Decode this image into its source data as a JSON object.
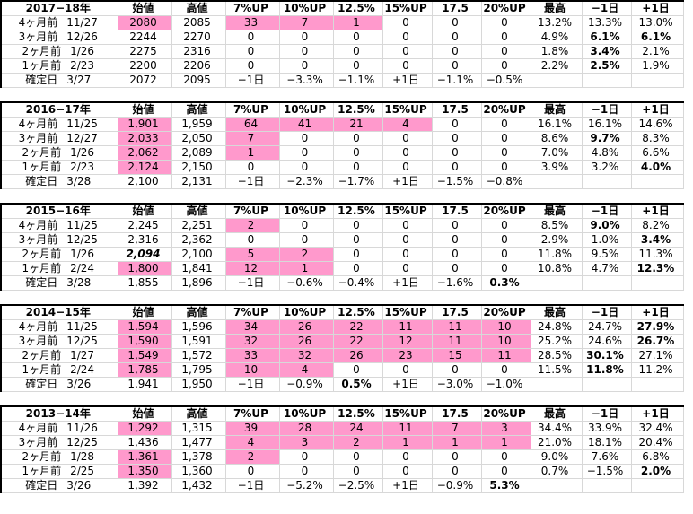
{
  "headers": [
    "始値",
    "高値",
    "7%UP",
    "10%UP",
    "12.5%",
    "15%UP",
    "17.5",
    "20%UP",
    "最高",
    "−1日",
    "+1日"
  ],
  "blocks": [
    {
      "year": "2017−18年",
      "rows": [
        {
          "label": "4ヶ月前",
          "date": "11/27",
          "cells": [
            "2080",
            "2085",
            "33",
            "7",
            "1",
            "0",
            "0",
            "0",
            "13.2%",
            "13.3%",
            "13.0%"
          ]
        },
        {
          "label": "3ヶ月前",
          "date": "12/26",
          "cells": [
            "2244",
            "2270",
            "0",
            "0",
            "0",
            "0",
            "0",
            "0",
            "4.9%",
            "6.1%",
            "6.1%"
          ]
        },
        {
          "label": "2ヶ月前",
          "date": "1/26",
          "cells": [
            "2275",
            "2316",
            "0",
            "0",
            "0",
            "0",
            "0",
            "0",
            "1.8%",
            "3.4%",
            "2.1%"
          ]
        },
        {
          "label": "1ヶ月前",
          "date": "2/23",
          "cells": [
            "2200",
            "2206",
            "0",
            "0",
            "0",
            "0",
            "0",
            "0",
            "2.2%",
            "2.5%",
            "1.9%"
          ]
        },
        {
          "label": "確定日",
          "date": "3/27",
          "cells": [
            "2072",
            "2095",
            "−1日",
            "−3.3%",
            "−1.1%",
            "+1日",
            "−1.1%",
            "−0.5%",
            "",
            "",
            ""
          ]
        }
      ]
    },
    {
      "year": "2016−17年",
      "rows": [
        {
          "label": "4ヶ月前",
          "date": "11/25",
          "cells": [
            "1,901",
            "1,959",
            "64",
            "41",
            "21",
            "4",
            "0",
            "0",
            "16.1%",
            "16.1%",
            "14.6%"
          ]
        },
        {
          "label": "3ヶ月前",
          "date": "12/27",
          "cells": [
            "2,033",
            "2,050",
            "7",
            "0",
            "0",
            "0",
            "0",
            "0",
            "8.6%",
            "9.7%",
            "8.3%"
          ]
        },
        {
          "label": "2ヶ月前",
          "date": "1/26",
          "cells": [
            "2,062",
            "2,089",
            "1",
            "0",
            "0",
            "0",
            "0",
            "0",
            "7.0%",
            "4.8%",
            "6.6%"
          ]
        },
        {
          "label": "1ヶ月前",
          "date": "2/23",
          "cells": [
            "2,124",
            "2,150",
            "0",
            "0",
            "0",
            "0",
            "0",
            "0",
            "3.9%",
            "3.2%",
            "4.0%"
          ]
        },
        {
          "label": "確定日",
          "date": "3/28",
          "cells": [
            "2,100",
            "2,131",
            "−1日",
            "−2.3%",
            "−1.7%",
            "+1日",
            "−1.5%",
            "−0.8%",
            "",
            "",
            ""
          ]
        }
      ]
    },
    {
      "year": "2015−16年",
      "rows": [
        {
          "label": "4ヶ月前",
          "date": "11/25",
          "cells": [
            "2,245",
            "2,251",
            "2",
            "0",
            "0",
            "0",
            "0",
            "0",
            "8.5%",
            "9.0%",
            "8.2%"
          ]
        },
        {
          "label": "3ヶ月前",
          "date": "12/25",
          "cells": [
            "2,316",
            "2,362",
            "0",
            "0",
            "0",
            "0",
            "0",
            "0",
            "2.9%",
            "1.0%",
            "3.4%"
          ]
        },
        {
          "label": "2ヶ月前",
          "date": "1/26",
          "cells": [
            "2,094",
            "2,100",
            "5",
            "2",
            "0",
            "0",
            "0",
            "0",
            "11.8%",
            "9.5%",
            "11.3%"
          ]
        },
        {
          "label": "1ヶ月前",
          "date": "2/24",
          "cells": [
            "1,800",
            "1,841",
            "12",
            "1",
            "0",
            "0",
            "0",
            "0",
            "10.8%",
            "4.7%",
            "12.3%"
          ]
        },
        {
          "label": "確定日",
          "date": "3/28",
          "cells": [
            "1,855",
            "1,896",
            "−1日",
            "−0.6%",
            "−0.4%",
            "+1日",
            "−1.6%",
            "0.3%",
            "",
            "",
            ""
          ]
        }
      ]
    },
    {
      "year": "2014−15年",
      "rows": [
        {
          "label": "4ヶ月前",
          "date": "11/25",
          "cells": [
            "1,594",
            "1,596",
            "34",
            "26",
            "22",
            "11",
            "11",
            "10",
            "24.8%",
            "24.7%",
            "27.9%"
          ]
        },
        {
          "label": "3ヶ月前",
          "date": "12/25",
          "cells": [
            "1,590",
            "1,591",
            "32",
            "26",
            "22",
            "12",
            "11",
            "10",
            "25.2%",
            "24.6%",
            "26.7%"
          ]
        },
        {
          "label": "2ヶ月前",
          "date": "1/27",
          "cells": [
            "1,549",
            "1,572",
            "33",
            "32",
            "26",
            "23",
            "15",
            "11",
            "28.5%",
            "30.1%",
            "27.1%"
          ]
        },
        {
          "label": "1ヶ月前",
          "date": "2/24",
          "cells": [
            "1,785",
            "1,795",
            "10",
            "4",
            "0",
            "0",
            "0",
            "0",
            "11.5%",
            "11.8%",
            "11.2%"
          ]
        },
        {
          "label": "確定日",
          "date": "3/26",
          "cells": [
            "1,941",
            "1,950",
            "−1日",
            "−0.9%",
            "0.5%",
            "+1日",
            "−3.0%",
            "−1.0%",
            "",
            "",
            ""
          ]
        }
      ]
    },
    {
      "year": "2013−14年",
      "rows": [
        {
          "label": "4ヶ月前",
          "date": "11/26",
          "cells": [
            "1,292",
            "1,315",
            "39",
            "28",
            "24",
            "11",
            "7",
            "3",
            "34.4%",
            "33.9%",
            "32.4%"
          ]
        },
        {
          "label": "3ヶ月前",
          "date": "12/25",
          "cells": [
            "1,436",
            "1,477",
            "4",
            "3",
            "2",
            "1",
            "1",
            "1",
            "21.0%",
            "18.1%",
            "20.4%"
          ]
        },
        {
          "label": "2ヶ月前",
          "date": "1/28",
          "cells": [
            "1,361",
            "1,378",
            "2",
            "0",
            "0",
            "0",
            "0",
            "0",
            "9.0%",
            "7.6%",
            "6.8%"
          ]
        },
        {
          "label": "1ヶ月前",
          "date": "2/25",
          "cells": [
            "1,350",
            "1,360",
            "0",
            "0",
            "0",
            "0",
            "0",
            "0",
            "0.7%",
            "−1.5%",
            "2.0%"
          ]
        },
        {
          "label": "確定日",
          "date": "3/26",
          "cells": [
            "1,392",
            "1,432",
            "−1日",
            "−5.2%",
            "−2.5%",
            "+1日",
            "−0.9%",
            "5.3%",
            "",
            "",
            ""
          ]
        }
      ]
    }
  ],
  "colors": {
    "highlight": "#ff99cc",
    "muted": "#b0b0b0",
    "border": "#000000"
  }
}
